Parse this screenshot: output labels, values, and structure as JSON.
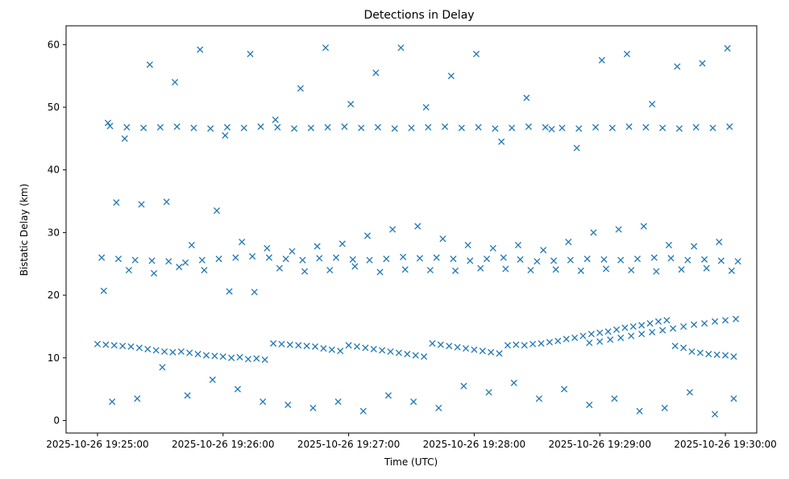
{
  "chart_data": {
    "type": "scatter",
    "title": "Detections in Delay",
    "xlabel": "Time (UTC)",
    "ylabel": "Bistatic Delay (km)",
    "xlim": [
      "2025-10-26 19:24:45",
      "2025-10-26 19:30:15"
    ],
    "ylim": [
      -2,
      63
    ],
    "xticks": [
      "2025-10-26 19:25:00",
      "2025-10-26 19:26:00",
      "2025-10-26 19:27:00",
      "2025-10-26 19:28:00",
      "2025-10-26 19:29:00",
      "2025-10-26 19:30:00"
    ],
    "yticks": [
      "0",
      "10",
      "20",
      "30",
      "40",
      "50",
      "60"
    ],
    "yticks_values": [
      0,
      10,
      20,
      30,
      40,
      50,
      60
    ],
    "marker": "x",
    "color": "#1f77b4",
    "grid": false,
    "legend": "none",
    "series": [
      {
        "x": [
          "19:25:00",
          "19:25:04",
          "19:25:08",
          "19:25:12",
          "19:25:16",
          "19:25:20",
          "19:25:24",
          "19:25:28",
          "19:25:32",
          "19:25:36",
          "19:25:40",
          "19:25:44",
          "19:25:48",
          "19:25:52",
          "19:25:56",
          "19:26:00",
          "19:26:04",
          "19:26:08",
          "19:26:12",
          "19:26:16",
          "19:26:20",
          "19:26:24",
          "19:26:28",
          "19:26:32",
          "19:26:36",
          "19:26:40",
          "19:26:44",
          "19:26:48",
          "19:26:52",
          "19:26:56",
          "19:27:00",
          "19:27:04",
          "19:27:08",
          "19:27:12",
          "19:27:16",
          "19:27:20",
          "19:27:24",
          "19:27:28",
          "19:27:32",
          "19:27:36",
          "19:27:40",
          "19:27:44",
          "19:27:48",
          "19:27:52",
          "19:27:56",
          "19:28:00",
          "19:28:04",
          "19:28:08",
          "19:28:12",
          "19:28:16",
          "19:28:20",
          "19:28:24",
          "19:28:28",
          "19:28:32",
          "19:28:36",
          "19:28:40",
          "19:28:44",
          "19:28:48",
          "19:28:52",
          "19:28:56",
          "19:29:00",
          "19:29:04",
          "19:29:08",
          "19:29:12",
          "19:29:16",
          "19:29:20",
          "19:29:24",
          "19:29:28",
          "19:29:32",
          "19:29:36",
          "19:29:40",
          "19:29:44",
          "19:29:48",
          "19:29:52",
          "19:29:56",
          "19:30:00",
          "19:30:04",
          "19:25:02",
          "19:25:10",
          "19:25:18",
          "19:25:26",
          "19:25:34",
          "19:25:42",
          "19:25:50",
          "19:25:58",
          "19:26:06",
          "19:26:14",
          "19:26:22",
          "19:26:30",
          "19:26:38",
          "19:26:46",
          "19:26:54",
          "19:27:02",
          "19:27:10",
          "19:27:18",
          "19:27:26",
          "19:27:34",
          "19:27:42",
          "19:27:50",
          "19:27:58",
          "19:28:06",
          "19:28:14",
          "19:28:22",
          "19:28:30",
          "19:28:38",
          "19:28:46",
          "19:28:54",
          "19:29:02",
          "19:29:10",
          "19:29:18",
          "19:29:26",
          "19:29:34",
          "19:29:42",
          "19:29:50",
          "19:29:58",
          "19:30:06",
          "19:25:06",
          "19:25:14",
          "19:25:22",
          "19:25:30",
          "19:25:38",
          "19:25:46",
          "19:25:54",
          "19:26:02",
          "19:26:10",
          "19:26:18",
          "19:26:26",
          "19:26:34",
          "19:26:42",
          "19:26:50",
          "19:26:58",
          "19:27:06",
          "19:27:14",
          "19:27:22",
          "19:27:30",
          "19:27:38",
          "19:27:46",
          "19:27:54",
          "19:28:02",
          "19:28:10",
          "19:28:18",
          "19:28:26",
          "19:28:34",
          "19:28:42",
          "19:28:50",
          "19:28:58",
          "19:29:06",
          "19:29:14",
          "19:29:22",
          "19:29:30",
          "19:29:38",
          "19:29:46",
          "19:29:54",
          "19:30:02",
          "19:25:03",
          "19:25:15",
          "19:25:27",
          "19:25:39",
          "19:25:51",
          "19:26:03",
          "19:26:15",
          "19:26:27",
          "19:26:39",
          "19:26:51",
          "19:27:03",
          "19:27:15",
          "19:27:27",
          "19:27:39",
          "19:27:51",
          "19:28:03",
          "19:28:15",
          "19:28:27",
          "19:28:39",
          "19:28:51",
          "19:29:03",
          "19:29:15",
          "19:29:27",
          "19:29:39",
          "19:29:51",
          "19:30:03",
          "19:25:09",
          "19:25:21",
          "19:25:33",
          "19:25:45",
          "19:25:57",
          "19:26:09",
          "19:26:21",
          "19:26:33",
          "19:26:45",
          "19:26:57",
          "19:27:09",
          "19:27:21",
          "19:27:33",
          "19:27:45",
          "19:27:57",
          "19:28:09",
          "19:28:21",
          "19:28:33",
          "19:28:45",
          "19:28:57",
          "19:29:09",
          "19:29:21",
          "19:29:33",
          "19:29:45",
          "19:29:57",
          "19:28:55",
          "19:29:00",
          "19:29:05",
          "19:29:10",
          "19:29:15",
          "19:29:20",
          "19:29:25",
          "19:29:30",
          "19:29:35",
          "19:29:40",
          "19:29:45",
          "19:29:50",
          "19:29:55",
          "19:30:00",
          "19:30:05",
          "19:25:05",
          "19:25:13",
          "19:25:25",
          "19:25:37",
          "19:25:49",
          "19:26:01",
          "19:26:13",
          "19:26:25",
          "19:26:37",
          "19:26:49",
          "19:27:01",
          "19:27:13",
          "19:27:25",
          "19:27:37",
          "19:27:49",
          "19:28:01",
          "19:28:13",
          "19:28:25",
          "19:28:37",
          "19:28:49",
          "19:29:01",
          "19:29:13",
          "19:29:25",
          "19:29:37",
          "19:29:49",
          "19:30:01",
          "19:25:07",
          "19:25:19",
          "19:25:31",
          "19:25:43",
          "19:25:55",
          "19:26:07",
          "19:26:19",
          "19:26:31",
          "19:26:43",
          "19:26:55",
          "19:27:07",
          "19:27:19",
          "19:27:31",
          "19:27:43",
          "19:27:55",
          "19:28:07",
          "19:28:19",
          "19:28:31",
          "19:28:43",
          "19:28:55",
          "19:29:07",
          "19:29:19",
          "19:29:31",
          "19:29:43",
          "19:29:55",
          "19:30:04"
        ],
        "y": [
          12.2,
          12.1,
          12.0,
          11.9,
          11.8,
          11.6,
          11.4,
          11.2,
          11.0,
          10.9,
          11.0,
          10.8,
          10.6,
          10.4,
          10.3,
          10.2,
          10.0,
          10.1,
          9.8,
          9.9,
          9.7,
          12.3,
          12.2,
          12.1,
          12.0,
          11.9,
          11.8,
          11.5,
          11.3,
          11.1,
          12.0,
          11.8,
          11.6,
          11.4,
          11.2,
          11.0,
          10.8,
          10.6,
          10.4,
          10.2,
          12.3,
          12.1,
          11.9,
          11.7,
          11.5,
          11.3,
          11.1,
          10.9,
          10.7,
          12.0,
          12.1,
          12.0,
          12.2,
          12.3,
          12.5,
          12.7,
          13.0,
          13.2,
          13.5,
          13.8,
          14.0,
          14.2,
          14.5,
          14.8,
          15.0,
          15.2,
          15.5,
          15.8,
          16.0,
          11.9,
          11.6,
          11.0,
          10.8,
          10.6,
          10.5,
          10.4,
          10.2,
          26.0,
          25.8,
          25.6,
          25.5,
          25.4,
          25.2,
          25.6,
          25.8,
          26.0,
          26.2,
          26.0,
          25.8,
          25.6,
          25.9,
          26.0,
          25.7,
          25.6,
          25.8,
          26.1,
          25.9,
          26.0,
          25.8,
          25.5,
          25.8,
          26.0,
          25.7,
          25.4,
          25.5,
          25.6,
          25.8,
          25.7,
          25.6,
          25.8,
          26.0,
          25.9,
          25.6,
          25.7,
          25.5,
          25.4,
          47.0,
          46.8,
          46.7,
          46.8,
          46.9,
          46.7,
          46.6,
          46.8,
          46.7,
          46.9,
          46.8,
          46.6,
          46.7,
          46.8,
          46.9,
          46.7,
          46.8,
          46.6,
          46.7,
          46.8,
          46.9,
          46.7,
          46.8,
          46.6,
          46.7,
          46.9,
          46.8,
          46.7,
          46.6,
          46.8,
          46.7,
          46.9,
          46.8,
          46.7,
          46.6,
          46.8,
          46.7,
          46.9,
          20.7,
          24.0,
          23.5,
          24.5,
          24.0,
          20.6,
          20.5,
          24.3,
          23.8,
          24.0,
          24.6,
          23.7,
          24.1,
          24.0,
          23.9,
          24.3,
          24.2,
          24.0,
          24.1,
          23.9,
          24.2,
          24.0,
          23.8,
          24.1,
          24.3,
          23.9,
          34.8,
          34.5,
          34.9,
          28.0,
          33.5,
          28.5,
          27.5,
          27.0,
          27.8,
          28.2,
          29.5,
          30.5,
          31.0,
          29.0,
          28.0,
          27.5,
          28.0,
          27.2,
          28.5,
          30.0,
          30.5,
          31.0,
          28.0,
          27.8,
          28.5,
          12.4,
          12.6,
          12.9,
          13.2,
          13.5,
          13.8,
          14.1,
          14.4,
          14.7,
          15.0,
          15.3,
          15.5,
          15.8,
          16.0,
          16.2,
          47.5,
          45.0,
          56.8,
          54.0,
          59.2,
          45.5,
          58.5,
          48.0,
          53.0,
          59.5,
          50.5,
          55.5,
          59.5,
          50.0,
          55.0,
          58.5,
          44.5,
          51.5,
          46.5,
          43.5,
          57.5,
          58.5,
          50.5,
          56.5,
          57.0,
          59.4,
          3.0,
          3.5,
          8.5,
          4.0,
          6.5,
          5.0,
          3.0,
          2.5,
          2.0,
          3.0,
          1.5,
          4.0,
          3.0,
          2.0,
          5.5,
          4.5,
          6.0,
          3.5,
          5.0,
          2.5,
          3.5,
          1.5,
          2.0,
          4.5,
          1.0,
          3.5
        ]
      }
    ]
  }
}
